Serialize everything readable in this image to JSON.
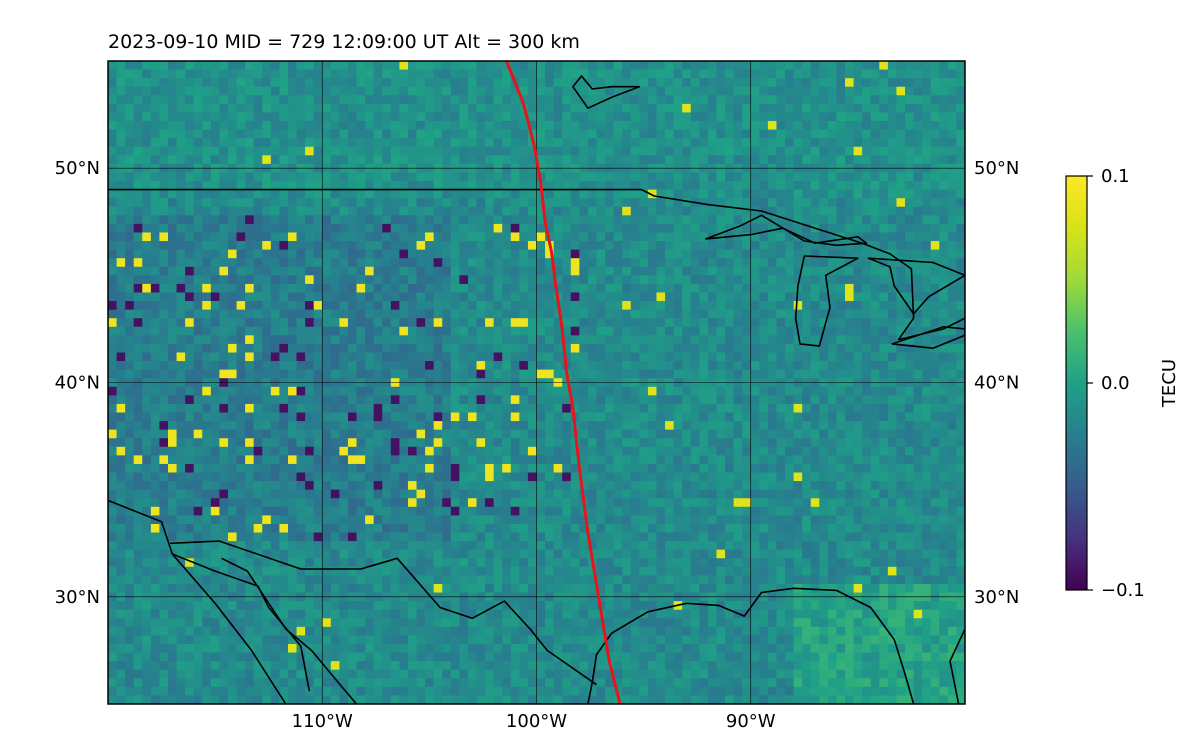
{
  "chart_data": {
    "type": "heatmap",
    "title": "2023-09-10  MID = 729    12:09:00  UT  Alt = 300 km",
    "xlabel": "",
    "ylabel": "",
    "map_extent": {
      "lon": [
        -120,
        -80
      ],
      "lat": [
        25,
        55
      ]
    },
    "lon_ticks": [
      {
        "value": -110,
        "label": "110°W"
      },
      {
        "value": -100,
        "label": "100°W"
      },
      {
        "value": -90,
        "label": "90°W"
      }
    ],
    "lat_ticks": [
      {
        "value": 30,
        "label": "30°N"
      },
      {
        "value": 40,
        "label": "40°N"
      },
      {
        "value": 50,
        "label": "50°N"
      }
    ],
    "grid": true,
    "colorbar": {
      "label": "TECU",
      "range": [
        -0.1,
        0.1
      ],
      "colormap": "viridis",
      "ticks": [
        {
          "value": 0.1,
          "label": "0.1"
        },
        {
          "value": 0.0,
          "label": "0.0"
        },
        {
          "value": -0.1,
          "label": "−0.1"
        }
      ]
    },
    "overlay_track": {
      "color": "#e8141c",
      "points": [
        [
          -101.4,
          55
        ],
        [
          -100.6,
          53
        ],
        [
          -100.1,
          51
        ],
        [
          -99.8,
          49.3
        ],
        [
          -99.6,
          47.5
        ],
        [
          -99.3,
          46.1
        ],
        [
          -99.1,
          44.5
        ],
        [
          -98.8,
          42.5
        ],
        [
          -98.6,
          40.5
        ],
        [
          -98.3,
          38.8
        ],
        [
          -98.0,
          36.0
        ],
        [
          -97.6,
          33.0
        ],
        [
          -97.1,
          30.0
        ],
        [
          -96.6,
          27.0
        ],
        [
          -96.1,
          25
        ]
      ]
    },
    "coastlines": [
      [
        [
          -120,
          34.5
        ],
        [
          -117.5,
          33.5
        ],
        [
          -117,
          32
        ],
        [
          -115,
          29.7
        ],
        [
          -113.3,
          27.5
        ],
        [
          -111.7,
          25
        ]
      ],
      [
        [
          -117,
          32
        ],
        [
          -115,
          31.2
        ],
        [
          -113,
          30.5
        ],
        [
          -112.5,
          29.5
        ],
        [
          -111,
          27.7
        ],
        [
          -110.6,
          25.6
        ]
      ],
      [
        [
          -114.7,
          31.8
        ],
        [
          -113.5,
          31.2
        ],
        [
          -111.7,
          28.5
        ],
        [
          -110.5,
          27.5
        ],
        [
          -109,
          25.7
        ],
        [
          -108.4,
          25
        ]
      ],
      [
        [
          -82.4,
          25
        ],
        [
          -82.8,
          26.4
        ],
        [
          -83.3,
          28
        ],
        [
          -84.4,
          29.5
        ],
        [
          -86,
          30.3
        ],
        [
          -88,
          30.4
        ],
        [
          -89.5,
          30.2
        ],
        [
          -90.3,
          29.1
        ],
        [
          -91.5,
          29.6
        ],
        [
          -93,
          29.7
        ],
        [
          -94.8,
          29.3
        ],
        [
          -96.5,
          28.3
        ],
        [
          -97.2,
          27.3
        ],
        [
          -97.4,
          26
        ],
        [
          -97.6,
          25
        ]
      ],
      [
        [
          -80,
          28.5
        ],
        [
          -80.7,
          27
        ],
        [
          -80.3,
          25
        ]
      ]
    ],
    "borders": [
      [
        [
          -120,
          49
        ],
        [
          -95.1,
          49
        ],
        [
          -94.5,
          48.7
        ],
        [
          -92,
          48.3
        ],
        [
          -89.5,
          48
        ],
        [
          -84.8,
          46.5
        ],
        [
          -83.5,
          46
        ],
        [
          -82.5,
          45.3
        ],
        [
          -82.4,
          43
        ],
        [
          -83.1,
          42
        ],
        [
          -81,
          42.5
        ],
        [
          -80,
          43
        ]
      ],
      [
        [
          -117.1,
          32.5
        ],
        [
          -114.8,
          32.6
        ],
        [
          -111,
          31.3
        ],
        [
          -108.2,
          31.3
        ],
        [
          -106.5,
          31.8
        ],
        [
          -104.5,
          29.5
        ],
        [
          -103,
          29
        ],
        [
          -101.5,
          29.8
        ],
        [
          -100.3,
          28.5
        ],
        [
          -99.5,
          27.5
        ],
        [
          -97.2,
          25.9
        ]
      ]
    ],
    "lakes": [
      [
        [
          -92.1,
          46.7
        ],
        [
          -90,
          46.9
        ],
        [
          -88.5,
          47.2
        ],
        [
          -87,
          46.5
        ],
        [
          -85,
          46.8
        ],
        [
          -84.6,
          46.5
        ],
        [
          -86,
          46.4
        ],
        [
          -87.5,
          46.6
        ],
        [
          -89.5,
          47.8
        ],
        [
          -90.5,
          47.3
        ],
        [
          -92.1,
          46.7
        ]
      ],
      [
        [
          -87.5,
          45.9
        ],
        [
          -87.8,
          44.5
        ],
        [
          -87.9,
          43
        ],
        [
          -87.7,
          41.8
        ],
        [
          -86.8,
          41.7
        ],
        [
          -86.3,
          43.5
        ],
        [
          -86.5,
          45
        ],
        [
          -85,
          45.8
        ],
        [
          -87.5,
          45.9
        ]
      ],
      [
        [
          -84.5,
          45.8
        ],
        [
          -83.5,
          45.4
        ],
        [
          -83.3,
          44.5
        ],
        [
          -82.4,
          43.2
        ],
        [
          -81.7,
          44
        ],
        [
          -80,
          45
        ],
        [
          -81.5,
          45.6
        ],
        [
          -84.5,
          45.8
        ]
      ],
      [
        [
          -83.4,
          41.8
        ],
        [
          -81.5,
          41.6
        ],
        [
          -80,
          42.2
        ],
        [
          -80,
          42.5
        ],
        [
          -81,
          42.6
        ],
        [
          -83.4,
          41.8
        ]
      ],
      [
        [
          -95.2,
          53.8
        ],
        [
          -96.5,
          53.3
        ],
        [
          -97.6,
          52.8
        ],
        [
          -98.3,
          53.8
        ],
        [
          -97.9,
          54.3
        ],
        [
          -97.4,
          53.7
        ],
        [
          -96.5,
          53.8
        ],
        [
          -95.2,
          53.8
        ]
      ]
    ]
  }
}
